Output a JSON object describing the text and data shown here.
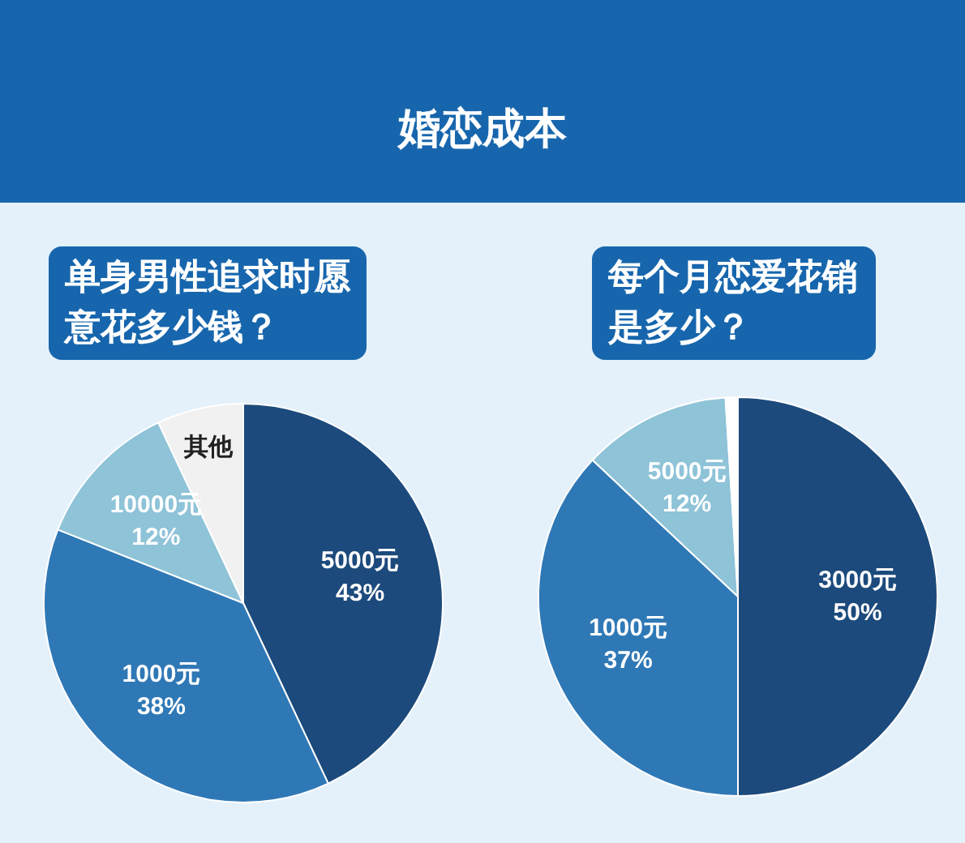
{
  "chart_data": [
    {
      "type": "pie",
      "title": "婚恋成本",
      "subtitle": "单身男性追求时愿意花多少钱？",
      "categories": [
        "5000元",
        "1000元",
        "10000元",
        "其他"
      ],
      "values": [
        43,
        38,
        12,
        7
      ],
      "value_labels": [
        "43%",
        "38%",
        "12%",
        null
      ],
      "colors": [
        "#1c4a7c",
        "#2f78b6",
        "#8ec3d8",
        "#f1f1f1"
      ],
      "legend": false
    },
    {
      "type": "pie",
      "title": "每个月恋爱花销是多少？",
      "categories": [
        "3000元",
        "1000元",
        "5000元",
        null
      ],
      "values": [
        50,
        37,
        12,
        1
      ],
      "value_labels": [
        "50%",
        "37%",
        "12%",
        null
      ],
      "colors": [
        "#1c4a7c",
        "#2f78b6",
        "#8ec3d8",
        "#ffffff"
      ],
      "legend": false
    }
  ]
}
